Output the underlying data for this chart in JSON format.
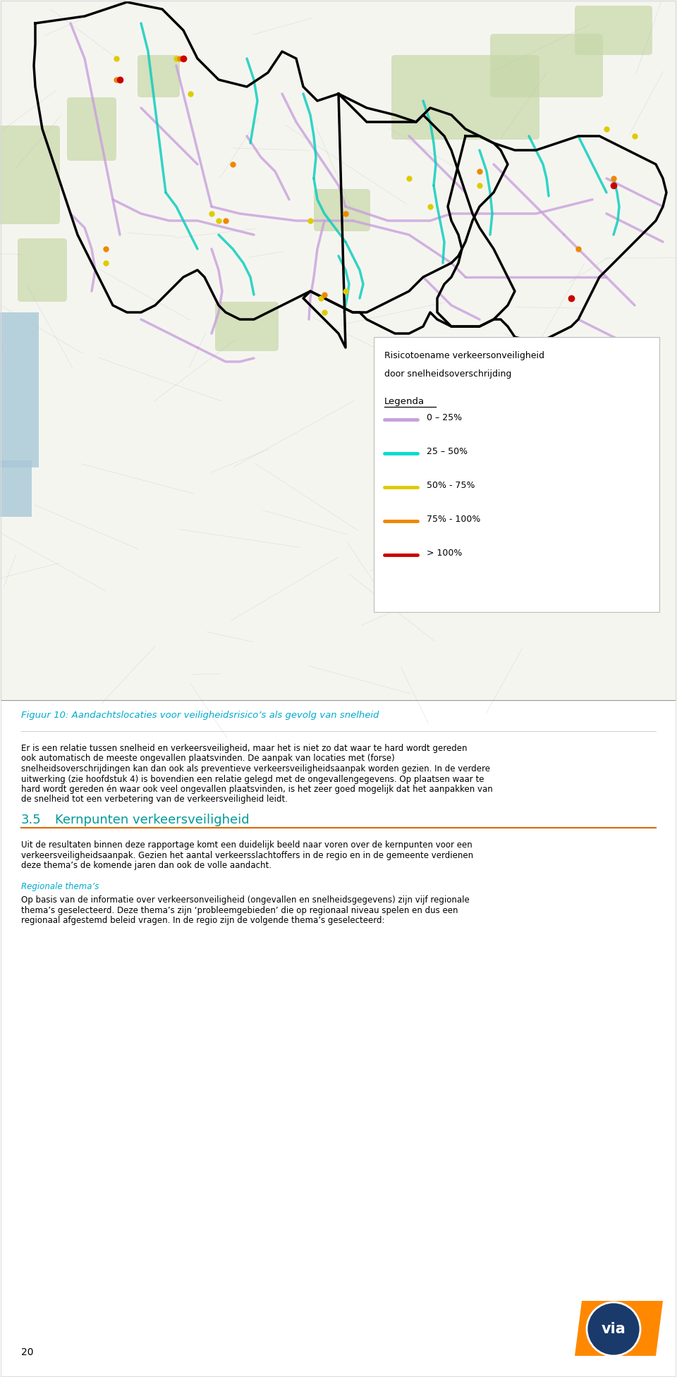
{
  "page_bg": "#ffffff",
  "figure_caption": "Figuur 10: Aandachtslocaties voor veiligheidsrisico’s als gevolg van snelheid",
  "caption_color": "#00AACC",
  "legend_title_line1": "Risicotoename verkeersonveiligheid",
  "legend_title_line2": "door snelheidsoverschrijding",
  "legend_label": "Legenda",
  "legend_items": [
    {
      "label": "0 – 25%",
      "color": "#C8A0DC"
    },
    {
      "label": "25 – 50%",
      "color": "#00DDCC"
    },
    {
      "label": "50% - 75%",
      "color": "#DDCC00"
    },
    {
      "label": "75% - 100%",
      "color": "#EE8800"
    },
    {
      "label": "> 100%",
      "color": "#CC0000"
    }
  ],
  "section_number": "3.5",
  "section_title": "Kernpunten verkeersveiligheid",
  "section_title_color": "#009999",
  "section_line_color": "#DD6600",
  "page_number": "20",
  "paragraphs": [
    "Er is een relatie tussen snelheid en verkeersveiligheid, maar het is niet zo dat waar te hard wordt gereden ook automatisch de meeste ongevallen plaatsvinden. De aanpak van locaties met (forse) snelheidsoverschrijdingen kan dan ook als preventieve verkeersveiligheidsaanpak worden gezien. In de verdere uitwerking (zie hoofdstuk 4) is bovendien een relatie gelegd met de ongevallengegevens. Op plaatsen waar te hard wordt gereden én waar ook veel ongevallen plaatsvinden, is het zeer goed mogelijk dat het aanpakken van de snelheid tot een verbetering van de verkeersveiligheid leidt.",
    "Uit de resultaten binnen deze rapportage komt een duidelijk beeld naar voren over de kernpunten voor een verkeersveiligheidsaanpak. Gezien het aantal verkeersslachtoffers in de regio en in de gemeente verdienen deze thema’s de komende jaren dan ook de volle aandacht.",
    "Op basis van de informatie over verkeersonveiligheid (ongevallen en snelheidsgegevens) zijn vijf regionale thema’s geselecteerd. Deze thema’s zijn ‘probleemgebieden’ die op regionaal niveau spelen en dus een regionaal afgestemd beleid vragen. In de regio zijn de volgende thema’s geselecteerd:"
  ],
  "regionale_themas": "Regionale thema’s",
  "text_color": "#000000"
}
